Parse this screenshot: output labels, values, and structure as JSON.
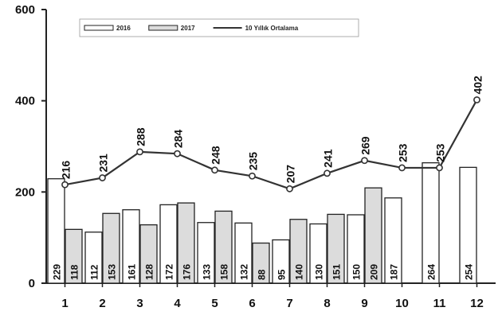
{
  "chart_data": {
    "type": "bar",
    "categories": [
      "1",
      "2",
      "3",
      "4",
      "5",
      "6",
      "7",
      "8",
      "9",
      "10",
      "11",
      "12"
    ],
    "series": [
      {
        "name": "2016",
        "kind": "bar",
        "fill": "#ffffff",
        "values": [
          229,
          112,
          161,
          172,
          133,
          132,
          95,
          130,
          150,
          187,
          264,
          254
        ]
      },
      {
        "name": "2017",
        "kind": "bar",
        "fill": "#dcdcdc",
        "values": [
          118,
          153,
          128,
          176,
          158,
          88,
          140,
          151,
          209,
          null,
          null,
          null
        ]
      },
      {
        "name": "10 Yıllık Ortalama",
        "kind": "line",
        "color": "#333333",
        "values": [
          216,
          231,
          288,
          284,
          248,
          235,
          207,
          241,
          269,
          253,
          253,
          402
        ]
      }
    ],
    "yticks": [
      0,
      200,
      400,
      600
    ],
    "ylim": [
      0,
      600
    ],
    "legend": "top-center",
    "grid": false
  }
}
